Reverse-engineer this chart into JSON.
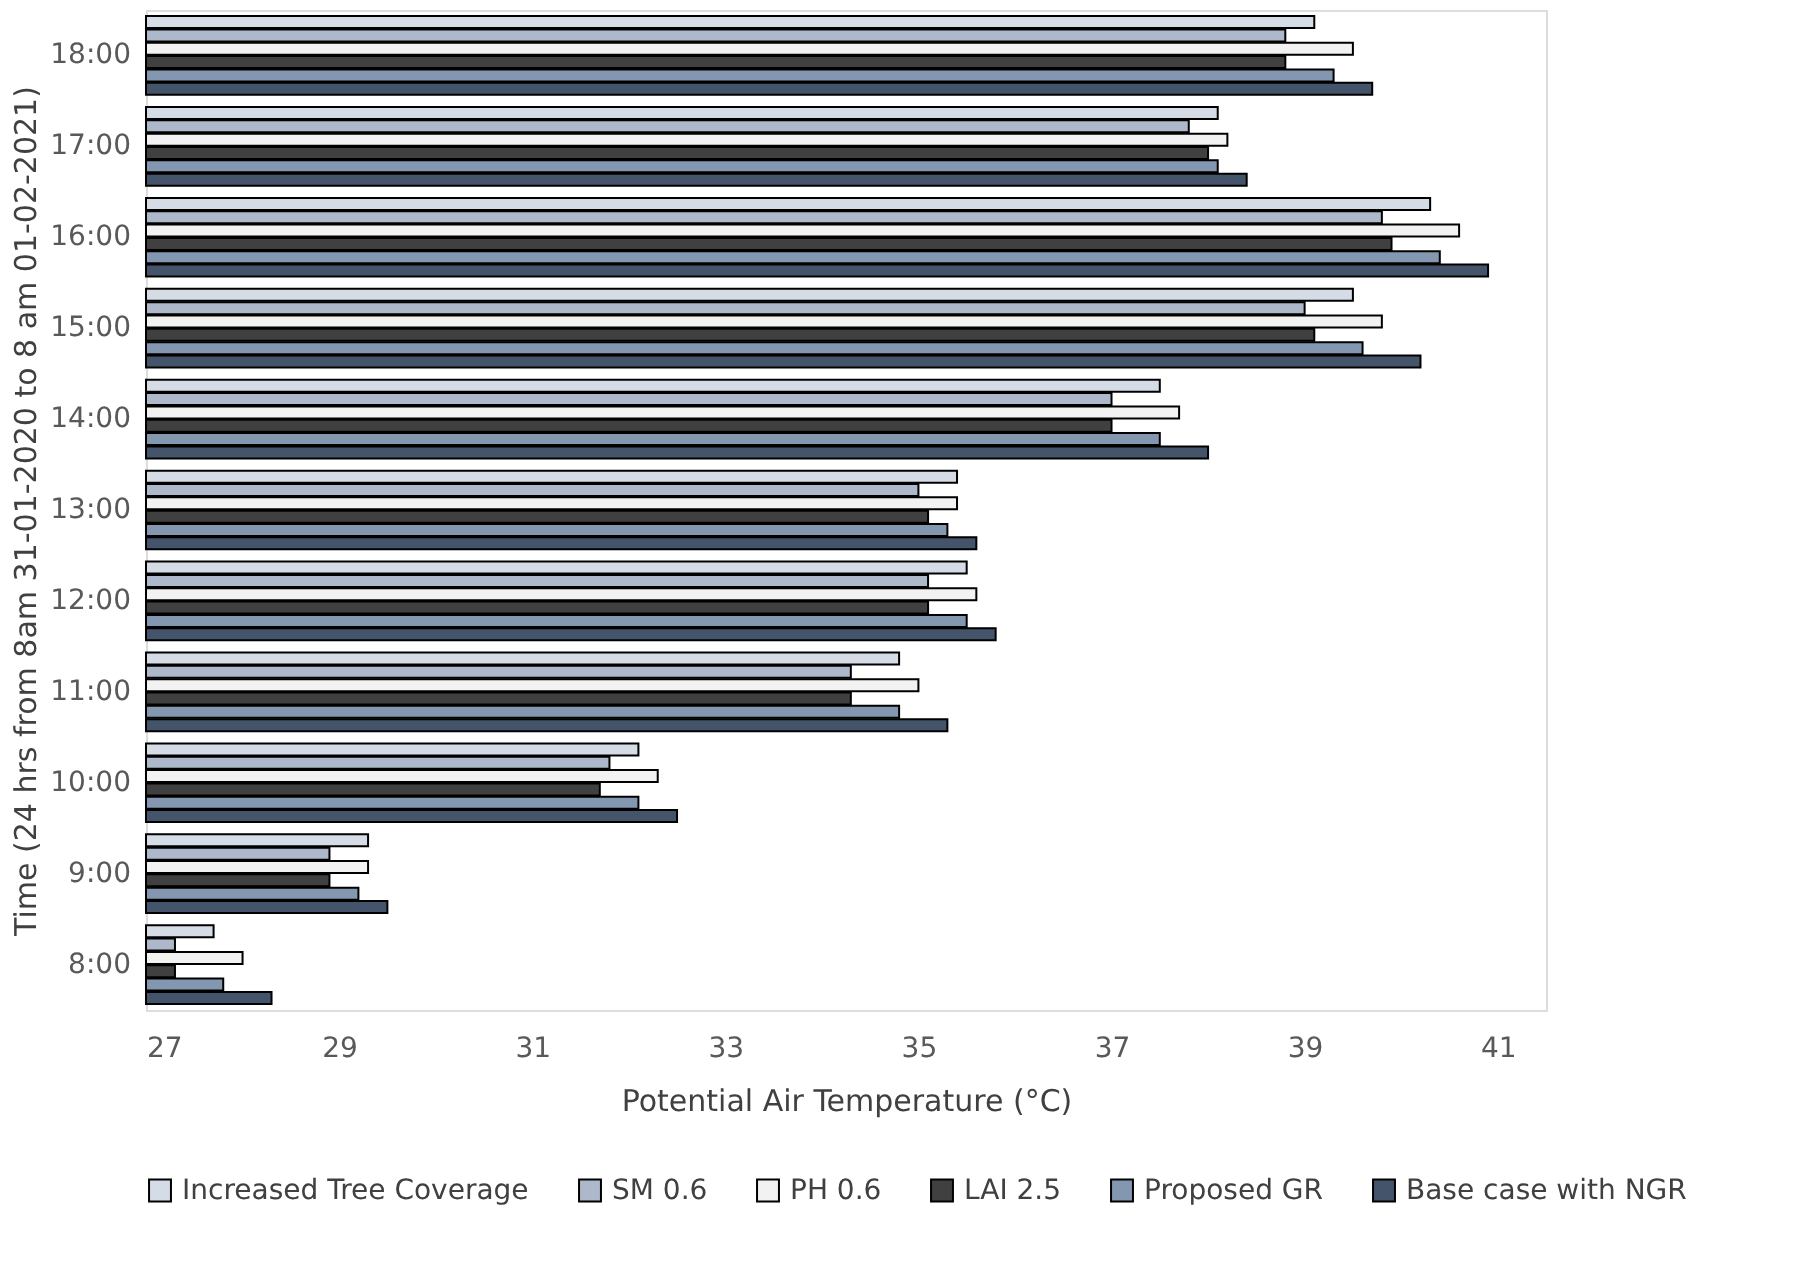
{
  "chart_data": {
    "type": "bar",
    "orientation": "horizontal",
    "xlabel": "Potential Air Temperature (°C)",
    "ylabel": "Time (24 hrs from 8am 31-01-2020 to 8 am 01-02-2021)",
    "categories": [
      "18:00",
      "17:00",
      "16:00",
      "15:00",
      "14:00",
      "13:00",
      "12:00",
      "11:00",
      "10:00",
      "9:00",
      "8:00"
    ],
    "xlim": [
      27,
      41.5
    ],
    "xticks": [
      27,
      29,
      31,
      33,
      35,
      37,
      39,
      41
    ],
    "grid": false,
    "legend": "bottom",
    "series": [
      {
        "name": "Increased Tree Coverage",
        "color": "#d6dce5",
        "values": [
          39.1,
          38.1,
          40.3,
          39.5,
          37.5,
          35.4,
          35.5,
          34.8,
          32.1,
          29.3,
          27.7
        ]
      },
      {
        "name": "SM 0.6",
        "color": "#adb9ca",
        "values": [
          38.8,
          37.8,
          39.8,
          39.0,
          37.0,
          35.0,
          35.1,
          34.3,
          31.8,
          28.9,
          27.3
        ]
      },
      {
        "name": "PH 0.6",
        "color": "#f2f2f2",
        "values": [
          39.5,
          38.2,
          40.6,
          39.8,
          37.7,
          35.4,
          35.6,
          35.0,
          32.3,
          29.3,
          28.0
        ]
      },
      {
        "name": "LAI 2.5",
        "color": "#404040",
        "values": [
          38.8,
          38.0,
          39.9,
          39.1,
          37.0,
          35.1,
          35.1,
          34.3,
          31.7,
          28.9,
          27.3
        ]
      },
      {
        "name": "Proposed GR",
        "color": "#8497b0",
        "values": [
          39.3,
          38.1,
          40.4,
          39.6,
          37.5,
          35.3,
          35.5,
          34.8,
          32.1,
          29.2,
          27.8
        ]
      },
      {
        "name": "Base case with NGR",
        "color": "#44546a",
        "values": [
          39.7,
          38.4,
          40.9,
          40.2,
          38.0,
          35.6,
          35.8,
          35.3,
          32.5,
          29.5,
          28.3
        ]
      }
    ]
  }
}
